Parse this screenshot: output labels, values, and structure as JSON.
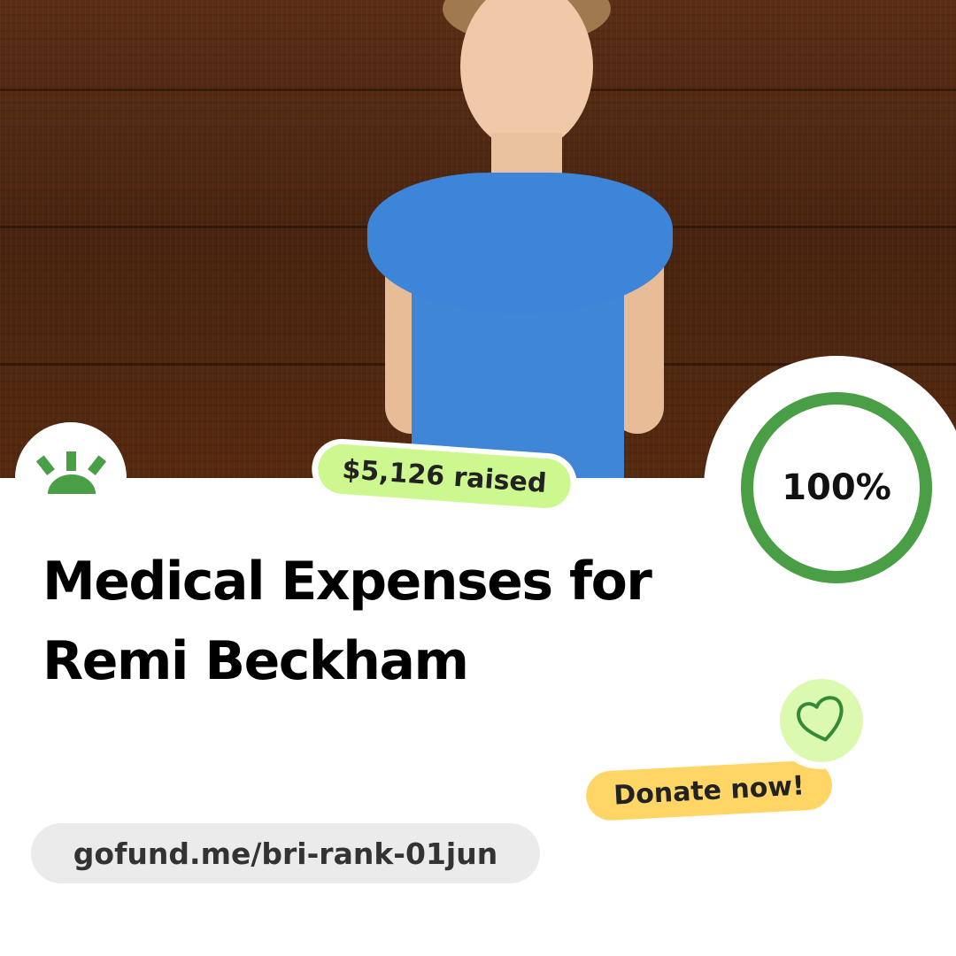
{
  "campaign": {
    "title_line1": "Medical Expenses for",
    "title_line2": "Remi Beckham",
    "raised": "$5,126 raised",
    "progress_label": "100%",
    "progress_fraction": 1.0,
    "donate_label": "Donate now!",
    "url": "gofund.me/bri-rank-01jun"
  },
  "colors": {
    "brand_green": "#4a9e45",
    "raised_bg": "#cdf78f",
    "donate_bg": "#ffd666",
    "heart_bg": "#dcf9b0",
    "url_bg": "#ebebeb"
  },
  "icons": {
    "logo": "gofundme-sun-logo",
    "heart": "heart-outline-icon"
  }
}
